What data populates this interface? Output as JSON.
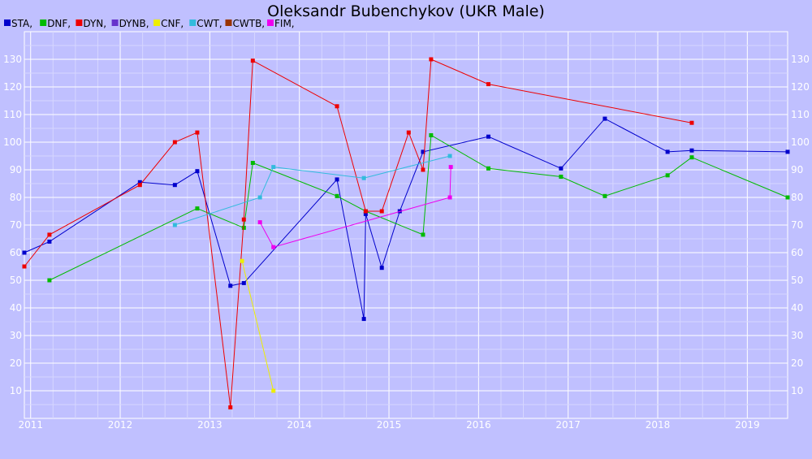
{
  "chart_data": {
    "type": "line",
    "title": "Oleksandr Bubenchykov (UKR Male)",
    "xlabel": "",
    "ylabel": "",
    "xlim": [
      2010.93,
      2019.45
    ],
    "ylim": [
      0,
      140
    ],
    "x_ticks": [
      "2011",
      "2012",
      "2013",
      "2014",
      "2015",
      "2016",
      "2017",
      "2018",
      "2019"
    ],
    "y_ticks": [
      "10",
      "20",
      "30",
      "40",
      "50",
      "60",
      "70",
      "80",
      "90",
      "100",
      "110",
      "120",
      "130"
    ],
    "grid": true,
    "legend_position": "top-left",
    "legend": [
      {
        "label": "STA,",
        "color": "#0000cc"
      },
      {
        "label": "DNF,",
        "color": "#00bb00"
      },
      {
        "label": "DYN,",
        "color": "#ee0000"
      },
      {
        "label": "DYNB,",
        "color": "#6633cc"
      },
      {
        "label": "CNF,",
        "color": "#eeee00"
      },
      {
        "label": "CWT,",
        "color": "#33bbdd"
      },
      {
        "label": "CWTB,",
        "color": "#993300"
      },
      {
        "label": "FIM,",
        "color": "#ee00ee"
      }
    ],
    "series": [
      {
        "name": "STA",
        "color": "#0000cc",
        "points": [
          [
            2010.93,
            60
          ],
          [
            2011.21,
            64
          ],
          [
            2012.22,
            85.5
          ],
          [
            2012.61,
            84.5
          ],
          [
            2012.86,
            89.5
          ],
          [
            2013.23,
            48
          ],
          [
            2013.38,
            49
          ],
          [
            2014.42,
            86.5
          ],
          [
            2014.72,
            36
          ],
          [
            2014.74,
            74
          ],
          [
            2014.92,
            54.5
          ],
          [
            2015.12,
            75
          ],
          [
            2015.38,
            96.5
          ],
          [
            2016.11,
            102
          ],
          [
            2016.92,
            90.5
          ],
          [
            2017.41,
            108.5
          ],
          [
            2018.11,
            96.5
          ],
          [
            2018.38,
            97
          ],
          [
            2019.45,
            96.5
          ]
        ]
      },
      {
        "name": "DNF",
        "color": "#00bb00",
        "points": [
          [
            2011.21,
            50
          ],
          [
            2012.86,
            76
          ],
          [
            2013.38,
            69
          ],
          [
            2013.48,
            92.5
          ],
          [
            2014.42,
            80.5
          ],
          [
            2014.74,
            75
          ],
          [
            2015.38,
            66.5
          ],
          [
            2015.47,
            102.5
          ],
          [
            2016.11,
            90.5
          ],
          [
            2016.92,
            87.5
          ],
          [
            2017.41,
            80.5
          ],
          [
            2018.11,
            88
          ],
          [
            2018.38,
            94.5
          ],
          [
            2019.45,
            80
          ]
        ]
      },
      {
        "name": "DYN",
        "color": "#ee0000",
        "points": [
          [
            2010.93,
            55
          ],
          [
            2011.21,
            66.5
          ],
          [
            2012.22,
            84.5
          ],
          [
            2012.61,
            100
          ],
          [
            2012.86,
            103.5
          ],
          [
            2013.23,
            4
          ],
          [
            2013.38,
            72
          ],
          [
            2013.48,
            129.5
          ],
          [
            2014.42,
            113
          ],
          [
            2014.74,
            75
          ],
          [
            2014.92,
            75
          ],
          [
            2015.22,
            103.5
          ],
          [
            2015.38,
            90
          ],
          [
            2015.47,
            130
          ],
          [
            2016.11,
            121
          ],
          [
            2018.38,
            107
          ]
        ]
      },
      {
        "name": "CNF",
        "color": "#eeee00",
        "points": [
          [
            2013.36,
            57
          ],
          [
            2013.71,
            10
          ]
        ]
      },
      {
        "name": "CWT",
        "color": "#33bbdd",
        "points": [
          [
            2012.61,
            70
          ],
          [
            2013.56,
            80
          ],
          [
            2013.71,
            91
          ],
          [
            2014.72,
            87
          ],
          [
            2015.68,
            95
          ]
        ]
      },
      {
        "name": "FIM",
        "color": "#ee00ee",
        "points": [
          [
            2013.56,
            71
          ],
          [
            2013.71,
            62
          ],
          [
            2015.68,
            80
          ],
          [
            2015.69,
            91
          ]
        ]
      }
    ]
  }
}
